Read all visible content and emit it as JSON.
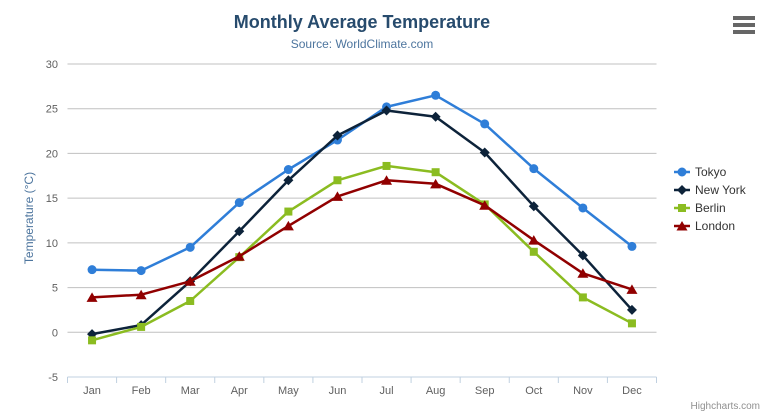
{
  "credits": "Highcharts.com",
  "chart_data": {
    "type": "line",
    "title": "Monthly Average Temperature",
    "subtitle": "Source: WorldClimate.com",
    "xlabel": "",
    "ylabel": "Temperature (°C)",
    "categories": [
      "Jan",
      "Feb",
      "Mar",
      "Apr",
      "May",
      "Jun",
      "Jul",
      "Aug",
      "Sep",
      "Oct",
      "Nov",
      "Dec"
    ],
    "series": [
      {
        "name": "Tokyo",
        "color": "#2f7ed8",
        "marker": "circle",
        "values": [
          7.0,
          6.9,
          9.5,
          14.5,
          18.2,
          21.5,
          25.2,
          26.5,
          23.3,
          18.3,
          13.9,
          9.6
        ]
      },
      {
        "name": "New York",
        "color": "#0d233a",
        "marker": "diamond",
        "values": [
          -0.2,
          0.8,
          5.7,
          11.3,
          17.0,
          22.0,
          24.8,
          24.1,
          20.1,
          14.1,
          8.6,
          2.5
        ]
      },
      {
        "name": "Berlin",
        "color": "#8bbc21",
        "marker": "square",
        "values": [
          -0.9,
          0.6,
          3.5,
          8.4,
          13.5,
          17.0,
          18.6,
          17.9,
          14.3,
          9.0,
          3.9,
          1.0
        ]
      },
      {
        "name": "London",
        "color": "#910000",
        "marker": "triangle",
        "values": [
          3.9,
          4.2,
          5.7,
          8.5,
          11.9,
          15.2,
          17.0,
          16.6,
          14.2,
          10.3,
          6.6,
          4.8
        ]
      }
    ],
    "ylim": [
      -5,
      30
    ],
    "yticks": [
      -5,
      0,
      5,
      10,
      15,
      20,
      25,
      30
    ],
    "grid": true,
    "legend_position": "right",
    "colors": {
      "title_text": "#274b6d",
      "subtitle_text": "#4d759e",
      "axis_label_text": "#606060",
      "grid_line": "#c0c0c0",
      "axis_line": "#c0d0e0",
      "legend_text": "#333333",
      "credits_text": "#909090",
      "menu_icon": "#666666"
    }
  }
}
